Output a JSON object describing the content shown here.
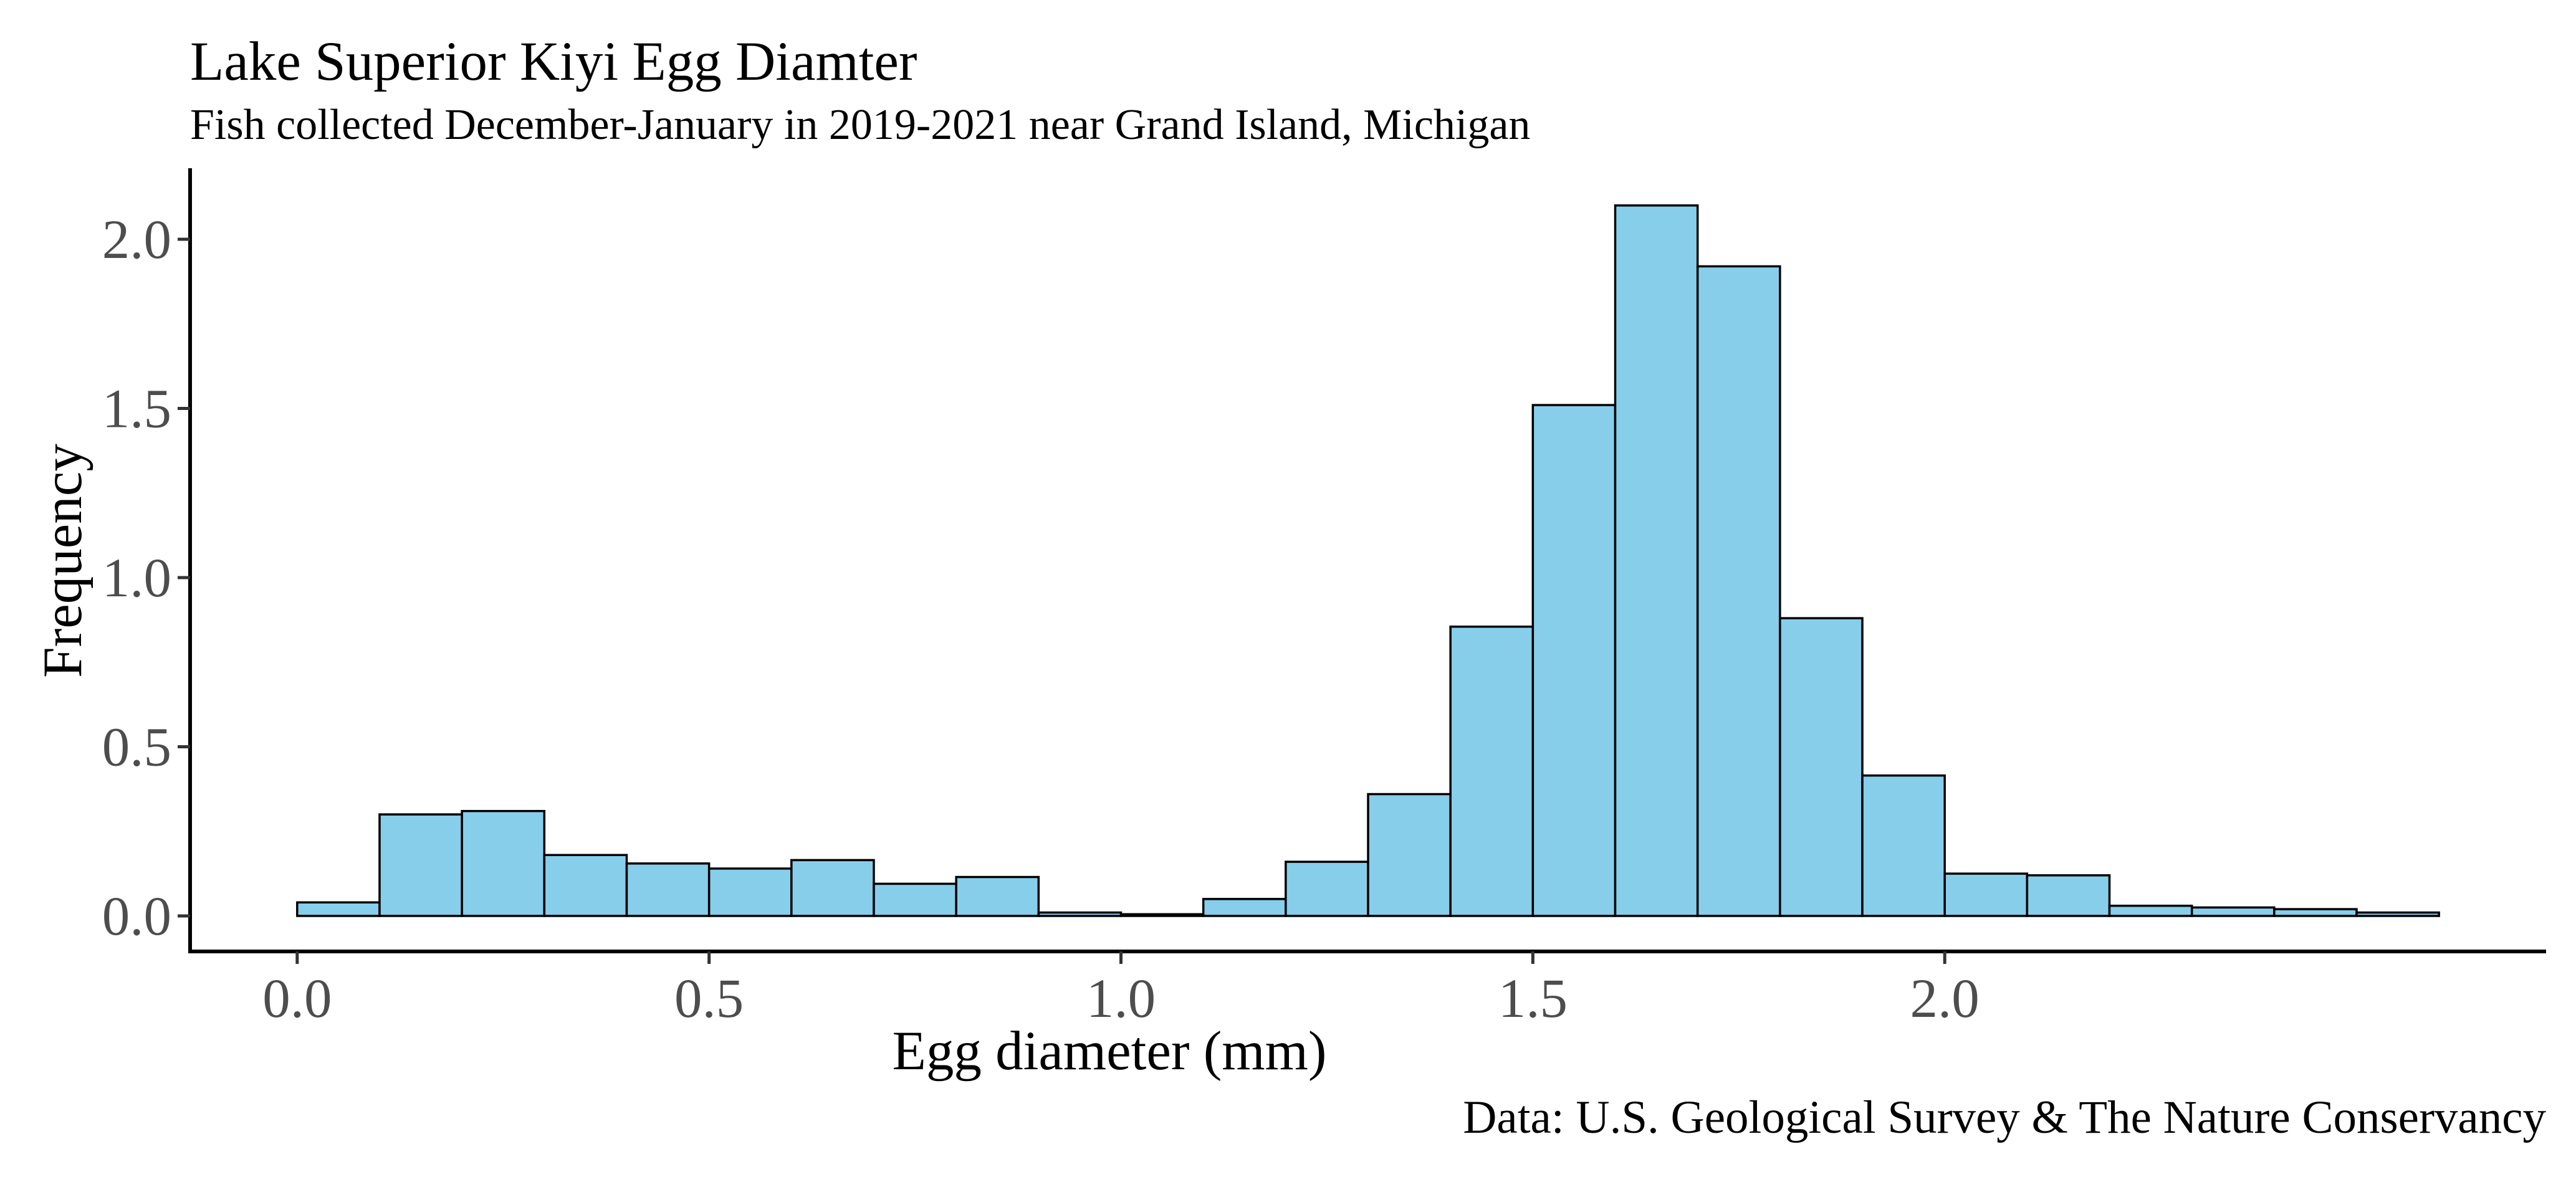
{
  "chart_data": {
    "type": "bar",
    "title": "Lake Superior Kiyi Egg Diamter",
    "subtitle": "Fish collected December-January in 2019-2021 near Grand Island, Michigan",
    "xlabel": "Egg diameter (mm)",
    "ylabel": "Frequency",
    "caption": "Data: U.S. Geological Survey & The Nature Conservancy",
    "bar_color": "#87CEEB",
    "bar_outline": "#000000",
    "bin_width": 0.1,
    "bins": [
      {
        "start": 0.0,
        "end": 0.1,
        "value": 0.04
      },
      {
        "start": 0.1,
        "end": 0.2,
        "value": 0.3
      },
      {
        "start": 0.2,
        "end": 0.3,
        "value": 0.31
      },
      {
        "start": 0.3,
        "end": 0.4,
        "value": 0.18
      },
      {
        "start": 0.4,
        "end": 0.5,
        "value": 0.155
      },
      {
        "start": 0.5,
        "end": 0.6,
        "value": 0.14
      },
      {
        "start": 0.6,
        "end": 0.7,
        "value": 0.165
      },
      {
        "start": 0.7,
        "end": 0.8,
        "value": 0.095
      },
      {
        "start": 0.8,
        "end": 0.9,
        "value": 0.115
      },
      {
        "start": 0.9,
        "end": 1.0,
        "value": 0.01
      },
      {
        "start": 1.0,
        "end": 1.1,
        "value": 0.005
      },
      {
        "start": 1.1,
        "end": 1.2,
        "value": 0.05
      },
      {
        "start": 1.2,
        "end": 1.3,
        "value": 0.16
      },
      {
        "start": 1.3,
        "end": 1.4,
        "value": 0.36
      },
      {
        "start": 1.4,
        "end": 1.5,
        "value": 0.855
      },
      {
        "start": 1.5,
        "end": 1.6,
        "value": 1.51
      },
      {
        "start": 1.6,
        "end": 1.7,
        "value": 2.1
      },
      {
        "start": 1.7,
        "end": 1.8,
        "value": 1.92
      },
      {
        "start": 1.8,
        "end": 1.9,
        "value": 0.88
      },
      {
        "start": 1.9,
        "end": 2.0,
        "value": 0.415
      },
      {
        "start": 2.0,
        "end": 2.1,
        "value": 0.125
      },
      {
        "start": 2.1,
        "end": 2.2,
        "value": 0.12
      },
      {
        "start": 2.2,
        "end": 2.3,
        "value": 0.03
      },
      {
        "start": 2.3,
        "end": 2.4,
        "value": 0.025
      },
      {
        "start": 2.4,
        "end": 2.5,
        "value": 0.02
      },
      {
        "start": 2.5,
        "end": 2.6,
        "value": 0.01
      }
    ],
    "xlim": [
      -0.13,
      2.73
    ],
    "ylim": [
      -0.105,
      2.21
    ],
    "x_ticks": [
      {
        "value": 0.0,
        "label": "0.0"
      },
      {
        "value": 0.5,
        "label": "0.5"
      },
      {
        "value": 1.0,
        "label": "1.0"
      },
      {
        "value": 1.5,
        "label": "1.5"
      },
      {
        "value": 2.0,
        "label": "2.0"
      }
    ],
    "y_ticks": [
      {
        "value": 0.0,
        "label": "0.0"
      },
      {
        "value": 0.5,
        "label": "0.5"
      },
      {
        "value": 1.0,
        "label": "1.0"
      },
      {
        "value": 1.5,
        "label": "1.5"
      },
      {
        "value": 2.0,
        "label": "2.0"
      }
    ],
    "grid": false,
    "legend": "none"
  }
}
